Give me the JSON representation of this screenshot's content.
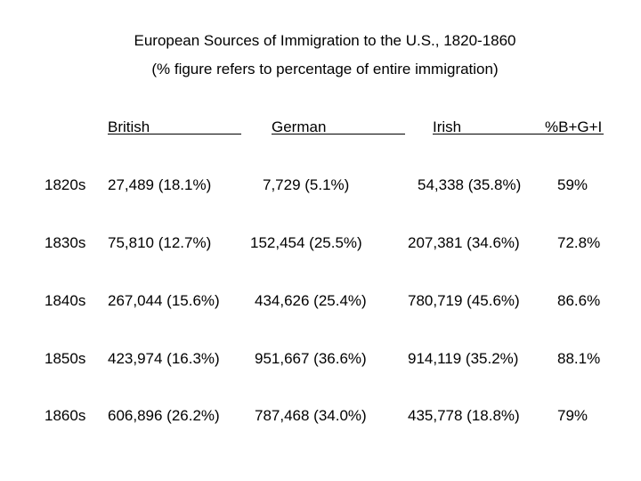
{
  "title": "European Sources of Immigration to the U.S., 1820-1860",
  "subtitle": "(% figure refers to percentage of entire immigration)",
  "headers": [
    "British",
    "German",
    "Irish",
    "%B+G+I"
  ],
  "rows": [
    {
      "decade": "1820s",
      "british": "27,489 (18.1%)",
      "german": "7,729 (5.1%)",
      "irish": "54,338 (35.8%)",
      "bgi": "59%"
    },
    {
      "decade": "1830s",
      "british": "75,810 (12.7%)",
      "german": "152,454 (25.5%)",
      "irish": "207,381 (34.6%)",
      "bgi": "72.8%"
    },
    {
      "decade": "1840s",
      "british": "267,044 (15.6%)",
      "german": "434,626 (25.4%)",
      "irish": "780,719 (45.6%)",
      "bgi": "86.6%"
    },
    {
      "decade": "1850s",
      "british": "423,974 (16.3%)",
      "german": "951,667 (36.6%)",
      "irish": "914,119 (35.2%)",
      "bgi": "88.1%"
    },
    {
      "decade": "1860s",
      "british": "606,896 (26.2%)",
      "german": "787,468 (34.0%)",
      "irish": "435,778 (18.8%)",
      "bgi": "79%"
    }
  ]
}
